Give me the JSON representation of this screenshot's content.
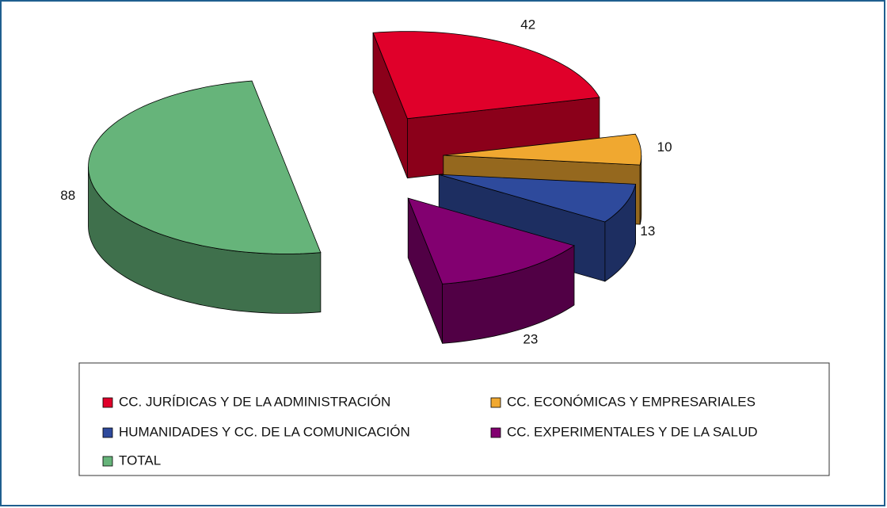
{
  "chart_data": {
    "type": "pie3d",
    "categories": [
      "CC. JURÍDICAS Y DE LA ADMINISTRACIÓN",
      "CC. ECONÓMICAS Y EMPRESARIALES",
      "HUMANIDADES Y CC. DE LA COMUNICACIÓN",
      "CC. EXPERIMENTALES Y DE LA SALUD",
      "TOTAL"
    ],
    "values": [
      42,
      10,
      13,
      23,
      88
    ],
    "colors": [
      "#e0002a",
      "#f0a830",
      "#2e4a9c",
      "#820070",
      "#66b47a"
    ],
    "legend": "bottom"
  }
}
